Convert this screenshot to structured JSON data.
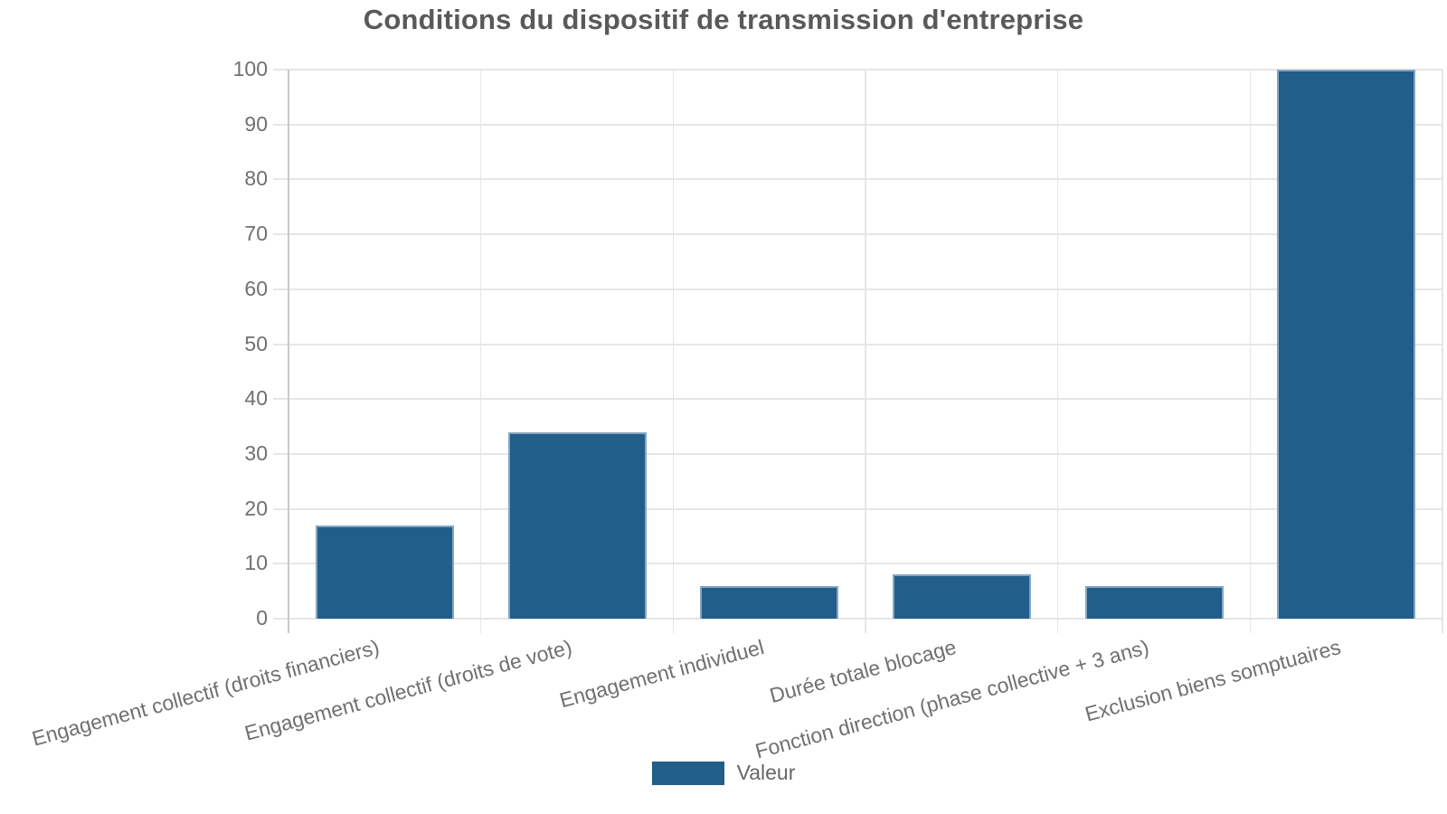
{
  "chart_data": {
    "type": "bar",
    "title": "Conditions du dispositif de transmission d'entreprise",
    "categories": [
      "Engagement collectif (droits financiers)",
      "Engagement collectif (droits de vote)",
      "Engagement individuel",
      "Durée totale blocage",
      "Fonction direction (phase collective + 3 ans)",
      "Exclusion biens somptuaires"
    ],
    "series": [
      {
        "name": "Valeur",
        "values": [
          17,
          34,
          6,
          8,
          6,
          100
        ],
        "color": "#215E8A"
      }
    ],
    "values": [
      17,
      34,
      6,
      8,
      6,
      100
    ],
    "xlabel": "",
    "ylabel": "",
    "ylim": [
      0,
      100
    ],
    "yticks": [
      0,
      10,
      20,
      30,
      40,
      50,
      60,
      70,
      80,
      90,
      100
    ],
    "grid": true,
    "legend_position": "bottom",
    "x_label_rotation_deg": -15
  },
  "legend": {
    "label": "Valeur",
    "swatch_color": "#215E8A"
  },
  "colors": {
    "bar": "#215E8A",
    "grid": "#E6E6E6",
    "axis": "#C9C9C9",
    "tick_label": "#707070",
    "title": "#595959",
    "legend_text": "#666666",
    "background": "#FFFFFF"
  }
}
